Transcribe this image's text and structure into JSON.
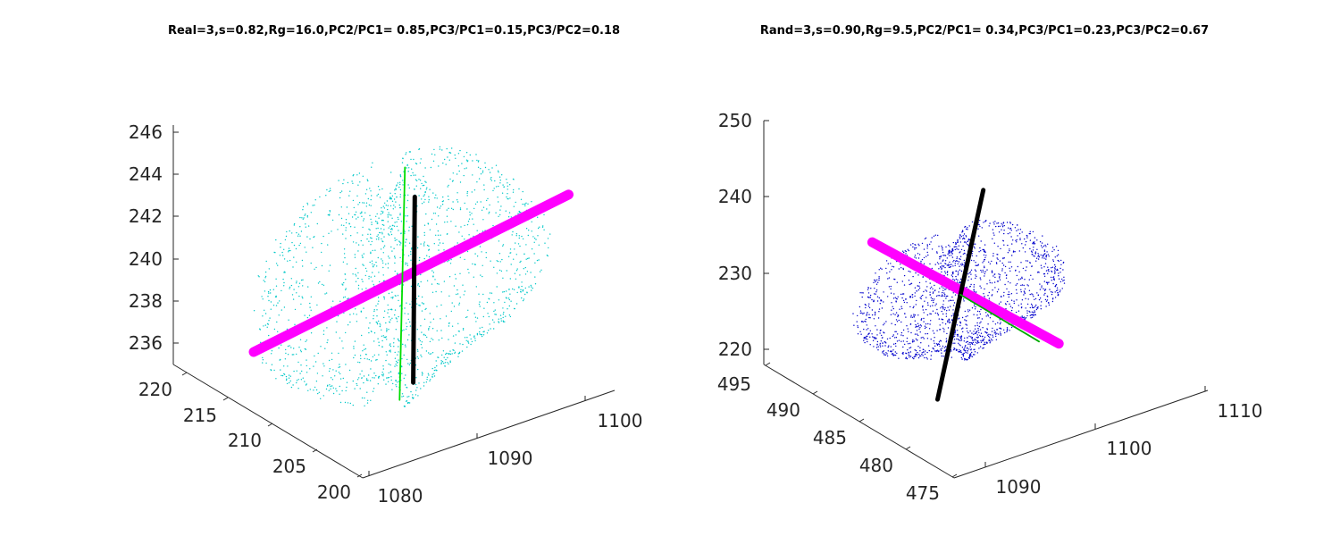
{
  "chart_data": [
    {
      "type": "scatter",
      "title": "Real=3,s=0.82,Rg=16.0,PC2/PC1= 0.85,PC3/PC1=0.15,PC3/PC2=0.18",
      "z_ticks": [
        "246",
        "244",
        "242",
        "240",
        "238",
        "236"
      ],
      "y_ticks": [
        "220",
        "215",
        "210",
        "205",
        "200"
      ],
      "x_ticks": [
        "1080",
        "1090",
        "1100"
      ],
      "zlim": [
        235,
        246.5
      ],
      "ylim": [
        200,
        222
      ],
      "xlim": [
        1080,
        1105
      ],
      "point_cloud_color": "#00c8c8",
      "series": [
        {
          "color": "#ff00ff",
          "segment": [
            [
              1082,
              215,
              237
            ],
            [
              1103,
              203,
              244
            ]
          ]
        },
        {
          "color": "#000000",
          "segment": [
            [
              1091,
              207,
              236
            ],
            [
              1092,
              208,
              244.5
            ]
          ]
        },
        {
          "color": "#00dd00",
          "segment": [
            [
              1090.5,
              208,
              235
            ],
            [
              1091.2,
              208.2,
              246
            ]
          ]
        }
      ]
    },
    {
      "type": "scatter",
      "title": "Rand=3,s=0.90,Rg=9.5,PC2/PC1= 0.34,PC3/PC1=0.23,PC3/PC2=0.67",
      "z_ticks": [
        "250",
        "240",
        "230",
        "220"
      ],
      "y_ticks": [
        "495",
        "490",
        "485",
        "480",
        "475"
      ],
      "x_ticks": [
        "1090",
        "1100",
        "1110"
      ],
      "zlim": [
        218,
        250
      ],
      "ylim": [
        475,
        495
      ],
      "xlim": [
        1087,
        1112
      ],
      "point_cloud_color": "#0000cc",
      "series": [
        {
          "color": "#ff00ff",
          "segment": [
            [
              1093,
              490,
              235
            ],
            [
              1102,
              480,
              225
            ]
          ]
        },
        {
          "color": "#000000",
          "segment": [
            [
              1091,
              481,
              222
            ],
            [
              1103,
              489,
              238
            ]
          ]
        },
        {
          "color": "#00aa00",
          "segment": [
            [
              1097,
              485,
              230
            ],
            [
              1101,
              481,
              225
            ]
          ]
        }
      ]
    }
  ]
}
